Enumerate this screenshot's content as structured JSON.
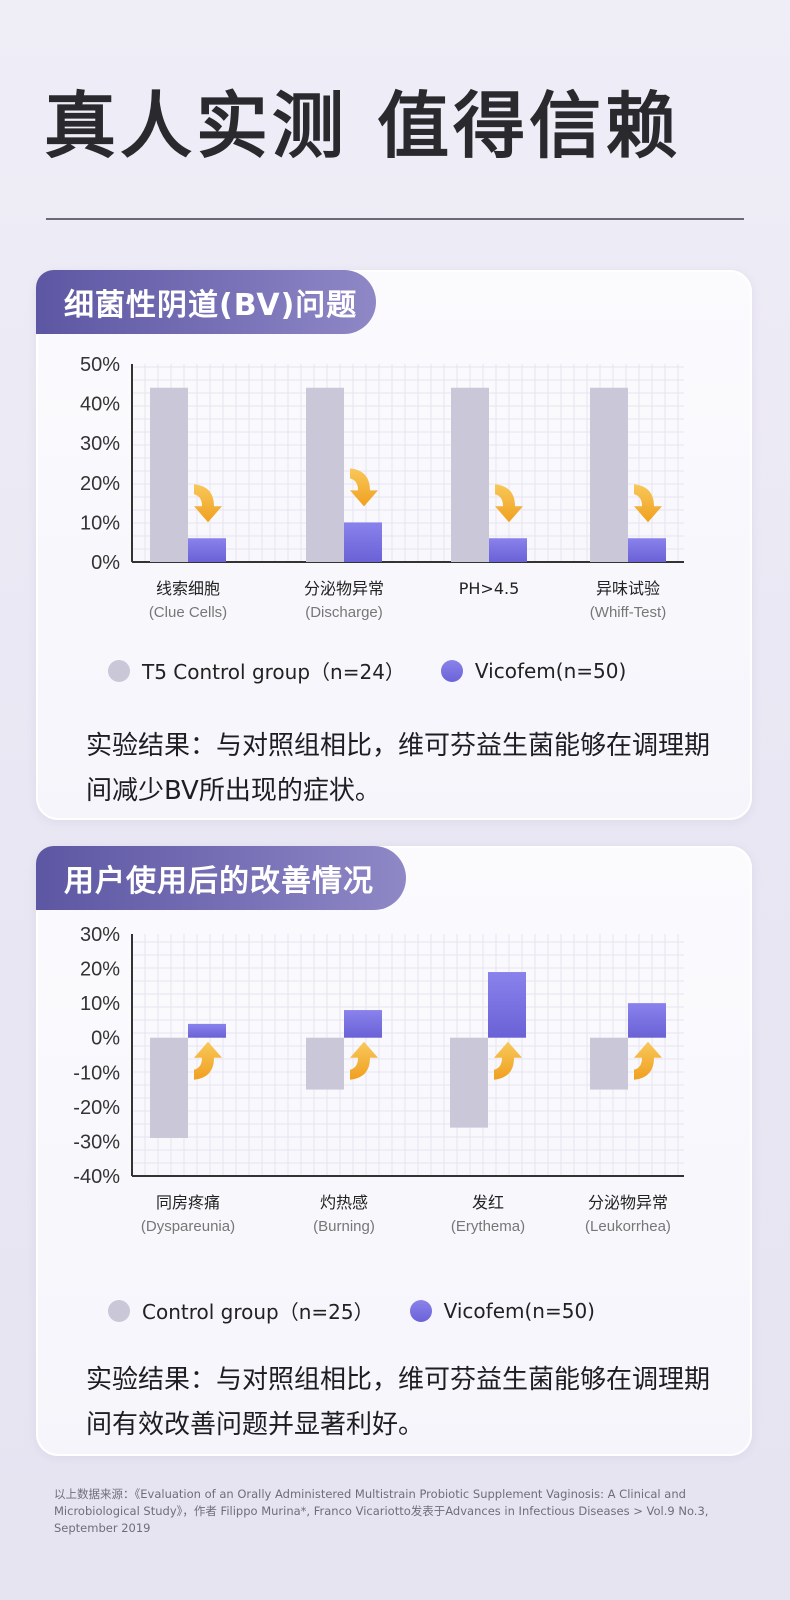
{
  "page_title": "真人实测 值得信赖",
  "card1": {
    "tab": "细菌性阴道(BV)问题",
    "legend": {
      "control": "T5 Control group（n=24）",
      "vicofem": "Vicofem(n=50)"
    },
    "result": "实验结果：与对照组相比，维可芬益生菌能够在调理期间减少BV所出现的症状。"
  },
  "card2": {
    "tab": "用户使用后的改善情况",
    "legend": {
      "control": "Control group（n=25）",
      "vicofem": "Vicofem(n=50)"
    },
    "result": "实验结果：与对照组相比，维可芬益生菌能够在调理期间有效改善问题并显著利好。"
  },
  "footnote": "以上数据来源：《Evaluation of an Orally Administered Multistrain Probiotic Supplement Vaginosis: A Clinical and Microbiological Study》，作者 Filippo Murina*, Franco Vicariotto发表于Advances in Infectious Diseases > Vol.9 No.3, September 2019",
  "colors": {
    "control": "#c9c7d8",
    "vicofem": "#7c74e0",
    "arrow": "#f5b63a",
    "tab": "#5d57a3"
  },
  "chart_data": [
    {
      "type": "bar",
      "categories": [
        "线索细胞",
        "分泌物异常",
        "PH>4.5",
        "异味试验"
      ],
      "category_subs": [
        "(Clue Cells)",
        "(Discharge)",
        "",
        "(Whiff-Test)"
      ],
      "series": [
        {
          "name": "T5 Control group（n=24）",
          "values": [
            44,
            44,
            44,
            44
          ]
        },
        {
          "name": "Vicofem(n=50)",
          "values": [
            6,
            10,
            6,
            6
          ]
        }
      ],
      "yticks": [
        "50%",
        "40%",
        "30%",
        "20%",
        "10%",
        "0%"
      ],
      "ylim": [
        0,
        50
      ],
      "grid": true
    },
    {
      "type": "bar",
      "categories": [
        "同房疼痛",
        "灼热感",
        "发红",
        "分泌物异常"
      ],
      "category_subs": [
        "(Dyspareunia)",
        "(Burning)",
        "(Erythema)",
        "(Leukorrhea)"
      ],
      "series": [
        {
          "name": "Control group（n=25）",
          "values": [
            -29,
            -15,
            -26,
            -15
          ]
        },
        {
          "name": "Vicofem(n=50)",
          "values": [
            4,
            8,
            19,
            10
          ]
        }
      ],
      "yticks": [
        "30%",
        "20%",
        "10%",
        "0%",
        "-10%",
        "-20%",
        "-30%",
        "-40%"
      ],
      "ylim": [
        -40,
        30
      ],
      "grid": true
    }
  ]
}
